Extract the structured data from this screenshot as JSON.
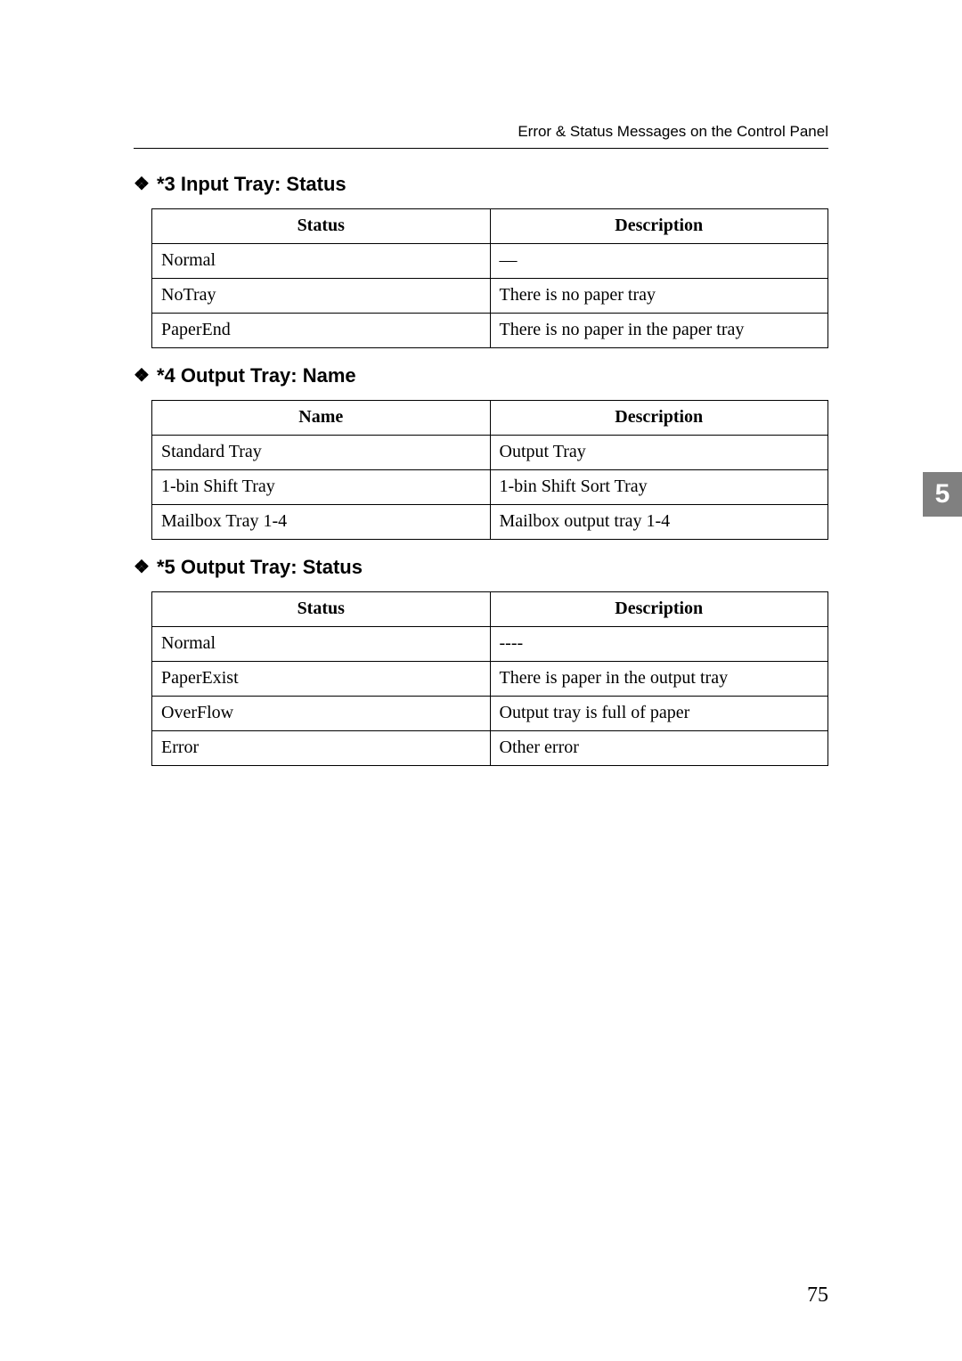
{
  "running_header": "Error & Status Messages on the Control Panel",
  "section3": {
    "title": "*3 Input Tray: Status",
    "headers": [
      "Status",
      "Description"
    ],
    "rows": [
      [
        "Normal",
        "—"
      ],
      [
        "NoTray",
        "There is no paper tray"
      ],
      [
        "PaperEnd",
        "There is no paper in the paper tray"
      ]
    ]
  },
  "section4": {
    "title": "*4 Output Tray: Name",
    "headers": [
      "Name",
      "Description"
    ],
    "rows": [
      [
        "Standard Tray",
        "Output Tray"
      ],
      [
        "1-bin Shift Tray",
        "1-bin Shift Sort Tray"
      ],
      [
        "Mailbox Tray 1-4",
        "Mailbox output tray 1-4"
      ]
    ]
  },
  "section5": {
    "title": "*5 Output Tray: Status",
    "headers": [
      "Status",
      "Description"
    ],
    "rows": [
      [
        "Normal",
        "----"
      ],
      [
        "PaperExist",
        "There is paper in the output tray"
      ],
      [
        "OverFlow",
        "Output tray is full of paper"
      ],
      [
        "Error",
        "Other error"
      ]
    ]
  },
  "side_tab": "5",
  "page_number": "75",
  "diamond_glyph": "❖"
}
